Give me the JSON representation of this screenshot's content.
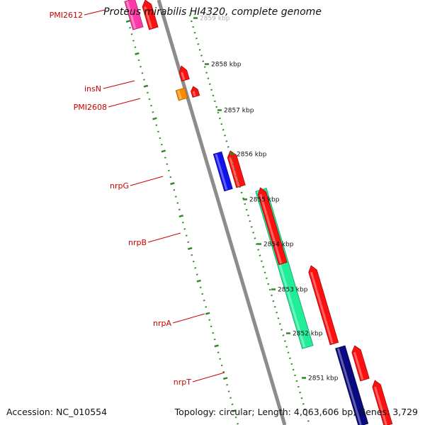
{
  "title": "Proteus mirabilis HI4320, complete genome",
  "accession": "Accession: NC_010554",
  "summary": "Topology: circular; Length: 4,063,606 bp; Genes: 3,729",
  "colors": {
    "backbone": "#8c8c8c",
    "scale_ticks": "#2e8b22",
    "label_text": "#cc0000",
    "label_line": "#cc0000",
    "scale_text": "#111111"
  },
  "scale_labels": [
    "2859 kbp",
    "2858 kbp",
    "2857 kbp",
    "2856 kbp",
    "2855 kbp",
    "2854 kbp",
    "2853 kbp",
    "2852 kbp",
    "2851 kbp"
  ],
  "gene_labels": [
    "PMI2612",
    "insN",
    "PMI2608",
    "nrpG",
    "nrpB",
    "nrpA",
    "nrpT"
  ],
  "features": [
    {
      "name": "PMI2612",
      "strand": "reverse",
      "color": "#ff3aa8"
    },
    {
      "name": "",
      "strand": "forward",
      "color": "#ff1010"
    },
    {
      "name": "insN",
      "strand": "forward",
      "color": "#ff1010"
    },
    {
      "name": "PMI2608",
      "strand": "reverse",
      "color": "#ff8c00"
    },
    {
      "name": "",
      "strand": "forward",
      "color": "#ff1010"
    },
    {
      "name": "nrpG",
      "strand": "reverse",
      "color": "#1111ee"
    },
    {
      "name": "",
      "strand": "forward",
      "color": "#ff1010"
    },
    {
      "name": "nrpB",
      "strand": "reverse",
      "color": "#22ee99"
    },
    {
      "name": "",
      "strand": "forward",
      "color": "#ff1010"
    },
    {
      "name": "",
      "strand": "forward",
      "color": "#ff1010"
    },
    {
      "name": "nrpT",
      "strand": "reverse",
      "color": "#0a0a80"
    },
    {
      "name": "",
      "strand": "forward",
      "color": "#ff1010"
    },
    {
      "name": "",
      "strand": "forward",
      "color": "#ff1010"
    }
  ]
}
